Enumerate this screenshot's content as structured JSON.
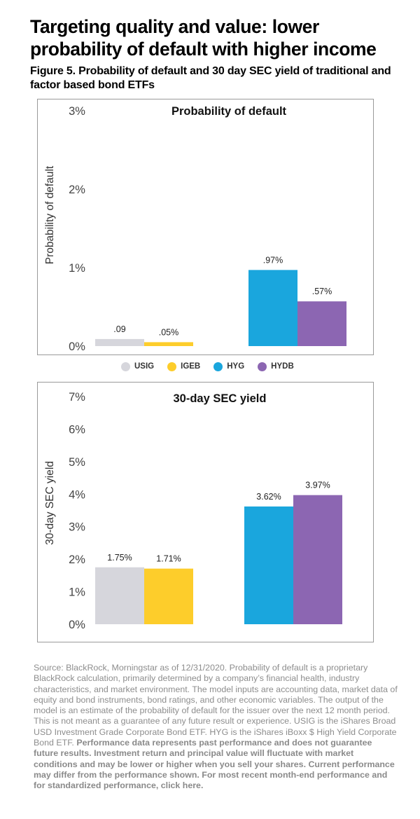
{
  "headline": "Targeting quality and value: lower probability of default with higher income",
  "subhead": "Figure 5. Probability of default and 30 day SEC yield of traditional and factor based bond ETFs",
  "legend": [
    {
      "label": "USIG",
      "color": "#d6d6dc"
    },
    {
      "label": "IGEB",
      "color": "#fdcd2b"
    },
    {
      "label": "HYG",
      "color": "#1aa6dd"
    },
    {
      "label": "HYDB",
      "color": "#8c66b2"
    }
  ],
  "chart_data": [
    {
      "type": "bar",
      "title": "Probability of default",
      "ylabel": "Probability of default",
      "ylim": [
        0,
        3
      ],
      "yticks": [
        "0%",
        "1%",
        "2%",
        "3%"
      ],
      "grid": false,
      "series": [
        {
          "name": "USIG",
          "value": 0.09,
          "label": ".09",
          "color": "#d6d6dc"
        },
        {
          "name": "IGEB",
          "value": 0.05,
          "label": ".05%",
          "color": "#fdcd2b"
        },
        {
          "name": "HYG",
          "value": 0.97,
          "label": ".97%",
          "color": "#1aa6dd"
        },
        {
          "name": "HYDB",
          "value": 0.57,
          "label": ".57%",
          "color": "#8c66b2"
        }
      ]
    },
    {
      "type": "bar",
      "title": "30-day SEC yield",
      "ylabel": "30-day SEC yield",
      "ylim": [
        0,
        7
      ],
      "yticks": [
        "0%",
        "1%",
        "2%",
        "3%",
        "4%",
        "5%",
        "6%",
        "7%"
      ],
      "grid": false,
      "series": [
        {
          "name": "USIG",
          "value": 1.75,
          "label": "1.75%",
          "color": "#d6d6dc"
        },
        {
          "name": "IGEB",
          "value": 1.71,
          "label": "1.71%",
          "color": "#fdcd2b"
        },
        {
          "name": "HYG",
          "value": 3.62,
          "label": "3.62%",
          "color": "#1aa6dd"
        },
        {
          "name": "HYDB",
          "value": 3.97,
          "label": "3.97%",
          "color": "#8c66b2"
        }
      ]
    }
  ],
  "footnote": {
    "source": "Source: BlackRock, Morningstar as of 12/31/2020. Probability of default is a proprietary BlackRock calculation, primarily determined by a company’s financial health, industry characteristics, and market environment. The model inputs are accounting data, market data of equity and bond instruments, bond ratings, and other economic variables. The output of the model is an estimate of the probability of default for the issuer over the next 12 month period.  This is not meant as a guarantee of any future result or experience. USIG is the iShares Broad USD Investment Grade Corporate Bond ETF. HYG is the iShares iBoxx $ High Yield Corporate Bond ETF.",
    "disclaimer": "Performance data represents past performance and does not guarantee future results. Investment return and principal value will fluctuate with market conditions and may be lower or higher when you sell your shares. Current performance may differ from the performance shown. For most recent month-end performance and for standardized performance, click here."
  }
}
